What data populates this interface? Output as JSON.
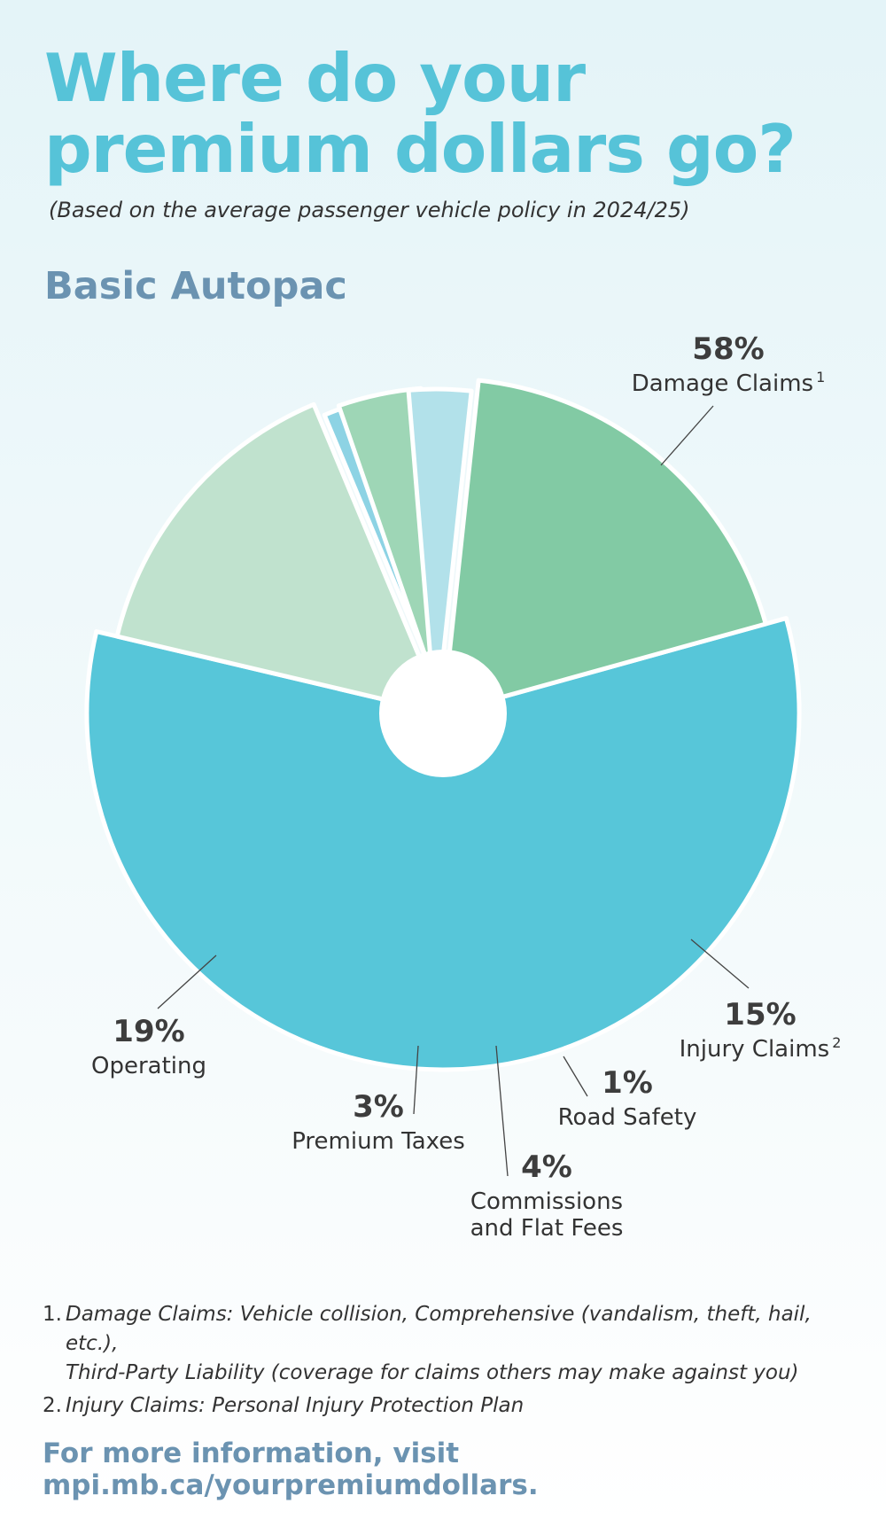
{
  "title_lines": [
    "Where do your",
    "premium dollars go?"
  ],
  "subtitle": "(Based on the average passenger vehicle policy in 2024/25)",
  "section_title": "Basic Autopac",
  "chart_data": {
    "type": "pie",
    "subtitle": "Basic Autopac",
    "slices": [
      {
        "pct_label": "58%",
        "value": 58,
        "label_lines": [
          "Damage Claims"
        ],
        "sup": "1",
        "color": "#57c6d9"
      },
      {
        "pct_label": "15%",
        "value": 15,
        "label_lines": [
          "Injury Claims"
        ],
        "sup": "2",
        "color": "#c0e2ce"
      },
      {
        "pct_label": "1%",
        "value": 1,
        "label_lines": [
          "Road Safety"
        ],
        "sup": "",
        "color": "#8dd3e4"
      },
      {
        "pct_label": "4%",
        "value": 4,
        "label_lines": [
          "Commissions",
          "and Flat Fees"
        ],
        "sup": "",
        "color": "#9ed6b6"
      },
      {
        "pct_label": "3%",
        "value": 3,
        "label_lines": [
          "Premium Taxes"
        ],
        "sup": "",
        "color": "#b2e1ea"
      },
      {
        "pct_label": "19%",
        "value": 19,
        "label_lines": [
          "Operating"
        ],
        "sup": "",
        "color": "#82caa4"
      }
    ]
  },
  "footnotes": [
    {
      "num": "1.",
      "lines": [
        "Damage Claims: Vehicle collision, Comprehensive (vandalism, theft, hail, etc.),",
        "Third-Party Liability (coverage for claims others may make against you)"
      ]
    },
    {
      "num": "2.",
      "lines": [
        "Injury Claims: Personal Injury Protection Plan"
      ]
    }
  ],
  "footer": "For more information, visit mpi.mb.ca/yourpremiumdollars."
}
